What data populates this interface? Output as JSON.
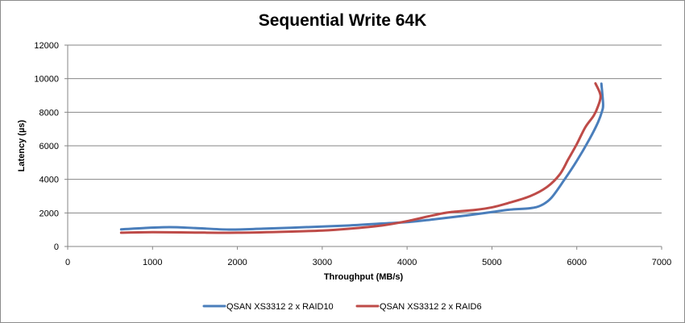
{
  "chart_data": {
    "type": "line",
    "title": "Sequential Write 64K",
    "xlabel": "Throughput (MB/s)",
    "ylabel": "Latency (µs)",
    "xlim": [
      0,
      7000
    ],
    "ylim": [
      0,
      12000
    ],
    "x_ticks": [
      0,
      1000,
      2000,
      3000,
      4000,
      5000,
      6000,
      7000
    ],
    "y_ticks": [
      0,
      2000,
      4000,
      6000,
      8000,
      10000,
      12000
    ],
    "grid": "horizontal",
    "legend_position": "bottom",
    "series": [
      {
        "name": "QSAN XS3312 2 x RAID10",
        "color": "#4a7ebb",
        "points": [
          [
            630,
            1020
          ],
          [
            900,
            1100
          ],
          [
            1200,
            1150
          ],
          [
            1500,
            1100
          ],
          [
            1900,
            1010
          ],
          [
            2300,
            1060
          ],
          [
            2800,
            1150
          ],
          [
            3300,
            1250
          ],
          [
            3700,
            1370
          ],
          [
            4000,
            1450
          ],
          [
            4300,
            1610
          ],
          [
            4700,
            1850
          ],
          [
            5000,
            2050
          ],
          [
            5200,
            2190
          ],
          [
            5450,
            2280
          ],
          [
            5580,
            2450
          ],
          [
            5700,
            2900
          ],
          [
            5850,
            3950
          ],
          [
            6000,
            5100
          ],
          [
            6150,
            6400
          ],
          [
            6250,
            7400
          ],
          [
            6300,
            8100
          ],
          [
            6310,
            8500
          ],
          [
            6290,
            9700
          ]
        ]
      },
      {
        "name": "QSAN XS3312 2 x RAID6",
        "color": "#be4b48",
        "points": [
          [
            630,
            820
          ],
          [
            1000,
            850
          ],
          [
            1500,
            830
          ],
          [
            2000,
            820
          ],
          [
            2500,
            870
          ],
          [
            3000,
            950
          ],
          [
            3300,
            1050
          ],
          [
            3700,
            1250
          ],
          [
            4000,
            1510
          ],
          [
            4300,
            1850
          ],
          [
            4500,
            2040
          ],
          [
            4800,
            2180
          ],
          [
            5000,
            2330
          ],
          [
            5200,
            2600
          ],
          [
            5450,
            3000
          ],
          [
            5650,
            3550
          ],
          [
            5800,
            4300
          ],
          [
            5900,
            5200
          ],
          [
            6000,
            6100
          ],
          [
            6100,
            7100
          ],
          [
            6200,
            7800
          ],
          [
            6250,
            8350
          ],
          [
            6280,
            9000
          ],
          [
            6220,
            9720
          ]
        ]
      }
    ]
  }
}
